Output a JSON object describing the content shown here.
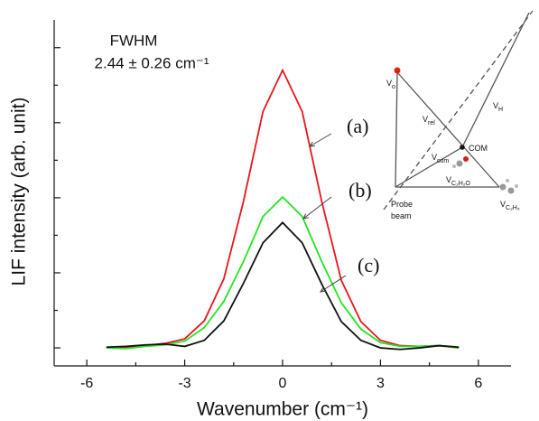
{
  "chart_data": {
    "type": "line",
    "ylabel": "LIF intensity (arb. unit)",
    "xlabel": "Wavenumber (cm⁻¹)",
    "annotations": [
      "FWHM",
      "2.44 ± 0.26 cm⁻¹"
    ],
    "x": [
      -5.4,
      -4.8,
      -4.2,
      -3.6,
      -3.0,
      -2.4,
      -1.8,
      -1.2,
      -0.6,
      0,
      0.6,
      1.2,
      1.8,
      2.4,
      3.0,
      3.6,
      4.2,
      4.8,
      5.4
    ],
    "series": [
      {
        "name": "(a)",
        "color": "#e8141c",
        "values": [
          0.0,
          0.01,
          0.03,
          0.06,
          0.12,
          0.36,
          0.92,
          1.95,
          3.15,
          3.7,
          3.15,
          1.95,
          0.9,
          0.35,
          0.1,
          0.03,
          0.02,
          0.03,
          0.0
        ]
      },
      {
        "name": "(b)",
        "color": "#22e522",
        "values": [
          0.0,
          -0.01,
          0.02,
          0.04,
          0.09,
          0.27,
          0.62,
          1.15,
          1.75,
          2.01,
          1.75,
          1.15,
          0.6,
          0.25,
          0.07,
          0.02,
          0.02,
          0.03,
          0.0
        ]
      },
      {
        "name": "(c)",
        "color": "#111111",
        "values": [
          0.01,
          0.02,
          0.04,
          0.05,
          0.02,
          0.1,
          0.36,
          0.86,
          1.4,
          1.67,
          1.4,
          0.85,
          0.35,
          0.1,
          0.0,
          -0.02,
          0.0,
          0.03,
          0.01
        ]
      }
    ],
    "xlim": [
      -7,
      7
    ],
    "xticks": [
      -6,
      -3,
      0,
      3,
      6
    ],
    "ylim": [
      -0.24,
      4.37
    ],
    "yticks": [
      0,
      1,
      2,
      3,
      4
    ],
    "ytick_labels": false,
    "inset": {
      "labels": [
        {
          "main": "V",
          "sub": "o"
        },
        {
          "main": "V",
          "sub": "rel"
        },
        {
          "main": "V",
          "sub": "H"
        },
        {
          "main": "V",
          "sub": "com"
        },
        {
          "main": "COM"
        },
        {
          "main": "V",
          "sub": "C₂H₂O"
        },
        {
          "main": "V",
          "sub": "C₂H₅"
        },
        {
          "main": "Probe"
        },
        {
          "main": "beam"
        }
      ]
    }
  }
}
